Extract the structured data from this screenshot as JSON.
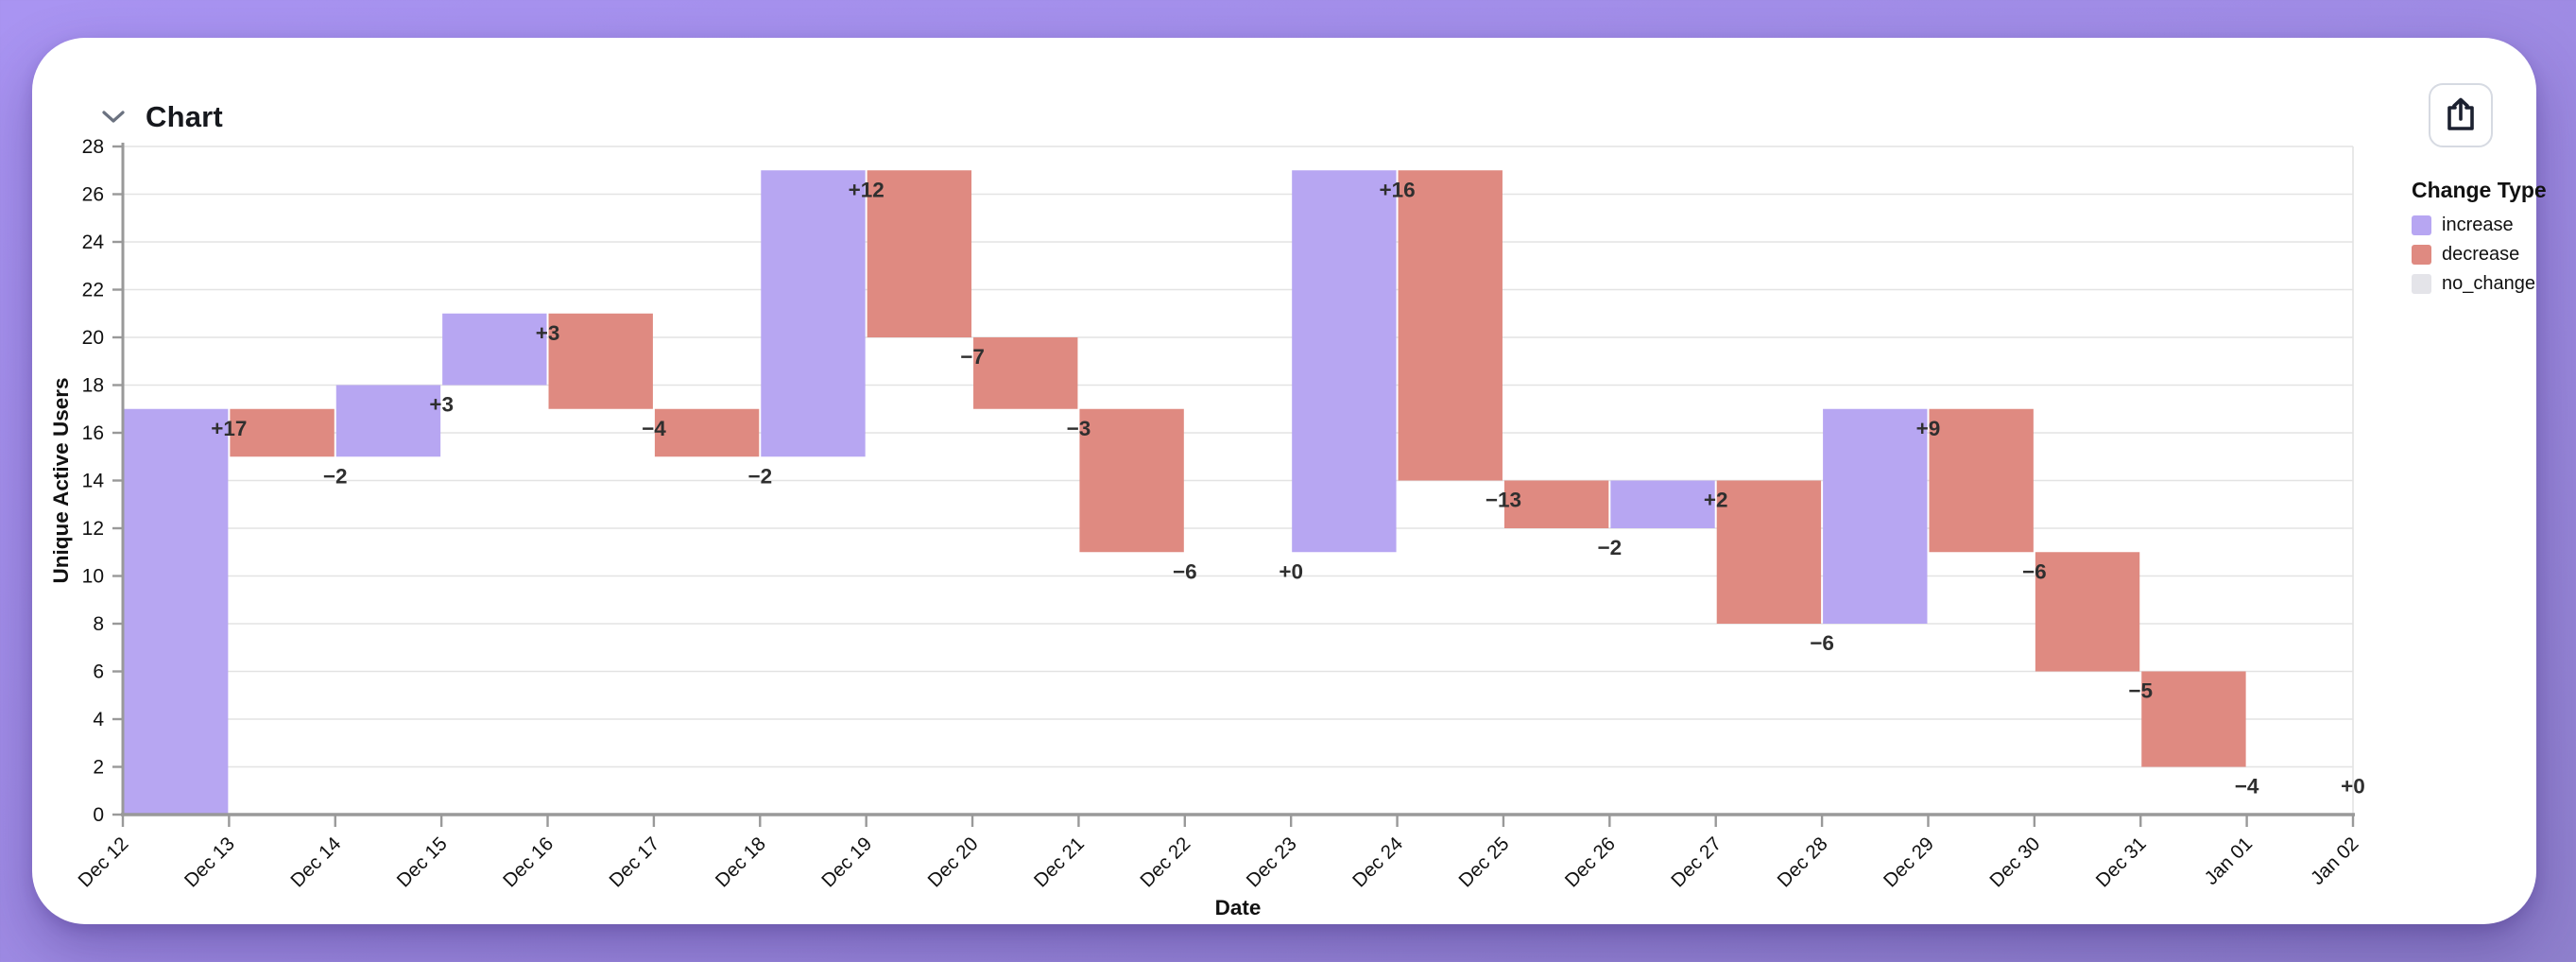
{
  "header": {
    "title": "Chart",
    "collapse_icon": "chevron-down",
    "share_icon": "share-up-arrow"
  },
  "colors": {
    "background": "#a08ce6",
    "card": "#ffffff",
    "increase": "#b7a6f2",
    "decrease": "#df8a81",
    "no_change": "#e4e4e9",
    "gridline": "#e3e3e3",
    "axis_line": "#999999",
    "tick_text": "#111111",
    "value_label_text": "#2f2f2f"
  },
  "legend": {
    "title": "Change Type",
    "items": [
      {
        "label": "increase",
        "color": "#b7a6f2"
      },
      {
        "label": "decrease",
        "color": "#df8a81"
      },
      {
        "label": "no_change",
        "color": "#e4e4e9"
      }
    ]
  },
  "chart_data": {
    "type": "bar",
    "subtype": "waterfall",
    "title": "",
    "xlabel": "Date",
    "ylabel": "Unique Active Users",
    "ylim": [
      0,
      28
    ],
    "y_ticks": [
      0,
      2,
      4,
      6,
      8,
      10,
      12,
      14,
      16,
      18,
      20,
      22,
      24,
      26,
      28
    ],
    "grid": "horizontal",
    "legend_position": "top-right",
    "x_tick_labels": [
      "Dec 12",
      "Dec 13",
      "Dec 14",
      "Dec 15",
      "Dec 16",
      "Dec 17",
      "Dec 18",
      "Dec 19",
      "Dec 20",
      "Dec 21",
      "Dec 22",
      "Dec 23",
      "Dec 24",
      "Dec 25",
      "Dec 26",
      "Dec 27",
      "Dec 28",
      "Dec 29",
      "Dec 30",
      "Dec 31",
      "Jan 01",
      "Jan 02"
    ],
    "bars": [
      {
        "date": "Dec 12",
        "change": 17,
        "label": "+17",
        "start": 0,
        "end": 17,
        "type": "increase"
      },
      {
        "date": "Dec 13",
        "change": -2,
        "label": "−2",
        "start": 17,
        "end": 15,
        "type": "decrease"
      },
      {
        "date": "Dec 14",
        "change": 3,
        "label": "+3",
        "start": 15,
        "end": 18,
        "type": "increase"
      },
      {
        "date": "Dec 15",
        "change": 3,
        "label": "+3",
        "start": 18,
        "end": 21,
        "type": "increase"
      },
      {
        "date": "Dec 16",
        "change": -4,
        "label": "−4",
        "start": 21,
        "end": 17,
        "type": "decrease"
      },
      {
        "date": "Dec 17",
        "change": -2,
        "label": "−2",
        "start": 17,
        "end": 15,
        "type": "decrease"
      },
      {
        "date": "Dec 18",
        "change": 12,
        "label": "+12",
        "start": 15,
        "end": 27,
        "type": "increase"
      },
      {
        "date": "Dec 19",
        "change": -7,
        "label": "−7",
        "start": 27,
        "end": 20,
        "type": "decrease"
      },
      {
        "date": "Dec 20",
        "change": -3,
        "label": "−3",
        "start": 20,
        "end": 17,
        "type": "decrease"
      },
      {
        "date": "Dec 21",
        "change": -6,
        "label": "−6",
        "start": 17,
        "end": 11,
        "type": "decrease"
      },
      {
        "date": "Dec 22",
        "change": 0,
        "label": "+0",
        "start": 11,
        "end": 11,
        "type": "no_change"
      },
      {
        "date": "Dec 23",
        "change": 16,
        "label": "+16",
        "start": 11,
        "end": 27,
        "type": "increase"
      },
      {
        "date": "Dec 24",
        "change": -13,
        "label": "−13",
        "start": 27,
        "end": 14,
        "type": "decrease"
      },
      {
        "date": "Dec 25",
        "change": -2,
        "label": "−2",
        "start": 14,
        "end": 12,
        "type": "decrease"
      },
      {
        "date": "Dec 26",
        "change": 2,
        "label": "+2",
        "start": 12,
        "end": 14,
        "type": "increase"
      },
      {
        "date": "Dec 27",
        "change": -6,
        "label": "−6",
        "start": 14,
        "end": 8,
        "type": "decrease"
      },
      {
        "date": "Dec 28",
        "change": 9,
        "label": "+9",
        "start": 8,
        "end": 17,
        "type": "increase"
      },
      {
        "date": "Dec 29",
        "change": -6,
        "label": "−6",
        "start": 17,
        "end": 11,
        "type": "decrease"
      },
      {
        "date": "Dec 30",
        "change": -5,
        "label": "−5",
        "start": 11,
        "end": 6,
        "type": "decrease"
      },
      {
        "date": "Dec 31",
        "change": -4,
        "label": "−4",
        "start": 6,
        "end": 2,
        "type": "decrease"
      },
      {
        "date": "Jan 01",
        "change": 0,
        "label": "+0",
        "start": 2,
        "end": 2,
        "type": "no_change"
      }
    ]
  }
}
